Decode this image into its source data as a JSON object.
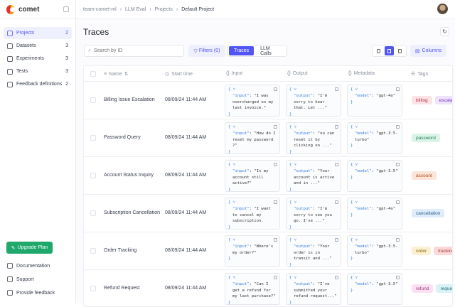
{
  "app": {
    "name": "comet"
  },
  "sidebar": {
    "items": [
      {
        "label": "Projects",
        "count": "2",
        "icon": "grid-icon",
        "active": true
      },
      {
        "label": "Datasets",
        "count": "3",
        "icon": "database-icon"
      },
      {
        "label": "Experiments",
        "count": "3",
        "icon": "flask-icon"
      },
      {
        "label": "Tests",
        "count": "3",
        "icon": "test-icon"
      },
      {
        "label": "Feedback definitions",
        "count": "2",
        "icon": "message-icon"
      }
    ],
    "upgrade_label": "Upgrade Plan",
    "bottom": [
      {
        "label": "Documentation",
        "icon": "book-icon"
      },
      {
        "label": "Support",
        "icon": "support-icon"
      },
      {
        "label": "Provide feedback",
        "icon": "feedback-icon"
      }
    ]
  },
  "breadcrumb": [
    "team-comet-ml",
    "LLM Eval",
    "Projects",
    "Default Project"
  ],
  "page": {
    "title": "Traces"
  },
  "toolbar": {
    "search_placeholder": "Search by ID",
    "filters": "Filters (0)",
    "tabs": [
      "Traces",
      "LLM Calls"
    ],
    "columns": "Columns"
  },
  "table": {
    "headers": {
      "name": "Name",
      "start_time": "Start time",
      "input": "Input",
      "output": "Output",
      "metadata": "Metadata",
      "tags": "Tags"
    },
    "rows": [
      {
        "name": "Billing Issue Escalation",
        "time": "08/09/24 11:44 AM",
        "input": "\"I was overcharged on my last invoice.\"",
        "output": "\"I'm sorry to hear that. Let ...\"",
        "model": "\"gpt-4o\"",
        "tags": [
          {
            "label": "billing",
            "bg": "#fde2e6",
            "fg": "#b0344a"
          },
          {
            "label": "escalation",
            "bg": "#efe3fb",
            "fg": "#7a3bb8"
          }
        ]
      },
      {
        "name": "Password Query",
        "time": "08/09/24 11:44 AM",
        "input": "\"How do I reset my password ?\"",
        "output": "\"ou can reset it by clicking on ...\"",
        "model": "\"gpt-3.5-turbo\"",
        "tags": [
          {
            "label": "password",
            "bg": "#daf5e8",
            "fg": "#237a50"
          }
        ]
      },
      {
        "name": "Account Status Inquiry",
        "time": "08/09/24 11:44 AM",
        "input": "\"Is my account still active?\"",
        "output": "\"Your account is active and in ...\"",
        "model": "\"gpt-3.5\"",
        "tags": [
          {
            "label": "account",
            "bg": "#fde4d8",
            "fg": "#a84a22"
          }
        ]
      },
      {
        "name": "Subscription Cancellation",
        "time": "08/09/24 11:44 AM",
        "input": "\"I want to cancel my subscription.",
        "output": "\"I'm sorry to see you go. I've ...\"",
        "model": "\"gpt-4o\"",
        "tags": [
          {
            "label": "cancellation",
            "bg": "#deecfb",
            "fg": "#2e5f96"
          }
        ]
      },
      {
        "name": "Order Tracking",
        "time": "08/09/24 11:44 AM",
        "input": "\"Where's my order?\"",
        "output": "\"Your order is in transit and ...\"",
        "model": "\"gpt-3.5-turbo\"",
        "tags": [
          {
            "label": "order",
            "bg": "#fbf0cf",
            "fg": "#8a6a12"
          },
          {
            "label": "tracking",
            "bg": "#fbd9d9",
            "fg": "#a33a3a"
          }
        ]
      },
      {
        "name": "Refund Request",
        "time": "08/09/24 11:44 AM",
        "input": "\"Can I get a refund for my last purchase?\"",
        "output": "\"I've submitted your refund request...\"",
        "model": "\"gpt-3.5\"",
        "tags": [
          {
            "label": "refund",
            "bg": "#fbe0f2",
            "fg": "#a03a80"
          },
          {
            "label": "request",
            "bg": "#d8f3f6",
            "fg": "#25717a"
          }
        ]
      }
    ]
  }
}
